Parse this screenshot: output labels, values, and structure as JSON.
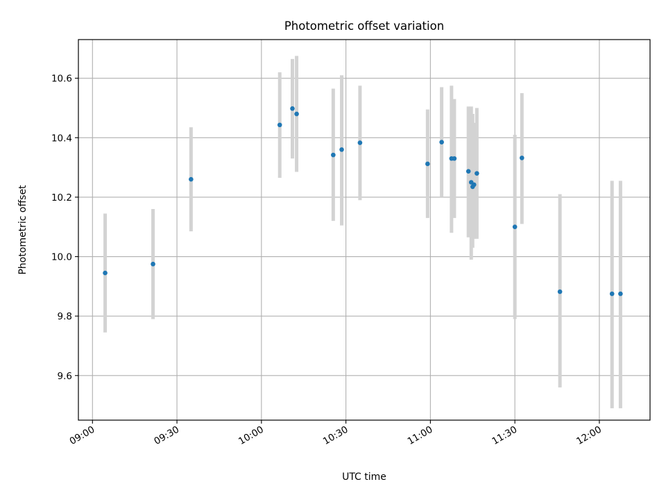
{
  "chart_data": {
    "type": "scatter",
    "title": "Photometric offset variation",
    "xlabel": "UTC time",
    "ylabel": "Photometric offset",
    "grid": true,
    "x_tick_labels": [
      "09:00",
      "09:30",
      "10:00",
      "10:30",
      "11:00",
      "11:30",
      "12:00"
    ],
    "y_tick_labels": [
      "9.6",
      "9.8",
      "10.0",
      "10.2",
      "10.4",
      "10.6"
    ],
    "xlim": [
      "08:55",
      "12:18"
    ],
    "ylim": [
      9.45,
      10.73
    ],
    "colors": {
      "point": "#1f77b4",
      "errorbar": "#d3d3d3",
      "grid": "#b0b0b0"
    },
    "points": [
      {
        "x": "09:04:30",
        "y": 9.945,
        "ylow": 9.745,
        "yhigh": 10.145
      },
      {
        "x": "09:21:30",
        "y": 9.975,
        "ylow": 9.79,
        "yhigh": 10.16
      },
      {
        "x": "09:35:00",
        "y": 10.26,
        "ylow": 10.085,
        "yhigh": 10.435
      },
      {
        "x": "10:06:30",
        "y": 10.443,
        "ylow": 10.265,
        "yhigh": 10.62
      },
      {
        "x": "10:11:00",
        "y": 10.498,
        "ylow": 10.33,
        "yhigh": 10.665
      },
      {
        "x": "10:12:30",
        "y": 10.48,
        "ylow": 10.285,
        "yhigh": 10.675
      },
      {
        "x": "10:25:30",
        "y": 10.342,
        "ylow": 10.12,
        "yhigh": 10.565
      },
      {
        "x": "10:28:30",
        "y": 10.36,
        "ylow": 10.105,
        "yhigh": 10.61
      },
      {
        "x": "10:35:00",
        "y": 10.383,
        "ylow": 10.19,
        "yhigh": 10.575
      },
      {
        "x": "10:59:00",
        "y": 10.312,
        "ylow": 10.13,
        "yhigh": 10.495
      },
      {
        "x": "11:04:00",
        "y": 10.385,
        "ylow": 10.2,
        "yhigh": 10.57
      },
      {
        "x": "11:07:30",
        "y": 10.33,
        "ylow": 10.08,
        "yhigh": 10.575
      },
      {
        "x": "11:08:30",
        "y": 10.33,
        "ylow": 10.13,
        "yhigh": 10.53
      },
      {
        "x": "11:13:30",
        "y": 10.287,
        "ylow": 10.065,
        "yhigh": 10.505
      },
      {
        "x": "11:14:30",
        "y": 10.25,
        "ylow": 9.99,
        "yhigh": 10.505
      },
      {
        "x": "11:15:00",
        "y": 10.235,
        "ylow": 10.03,
        "yhigh": 10.48
      },
      {
        "x": "11:15:30",
        "y": 10.242,
        "ylow": 10.06,
        "yhigh": 10.45
      },
      {
        "x": "11:16:30",
        "y": 10.28,
        "ylow": 10.06,
        "yhigh": 10.5
      },
      {
        "x": "11:30:00",
        "y": 10.1,
        "ylow": 9.79,
        "yhigh": 10.41
      },
      {
        "x": "11:32:30",
        "y": 10.332,
        "ylow": 10.11,
        "yhigh": 10.55
      },
      {
        "x": "11:46:00",
        "y": 9.882,
        "ylow": 9.56,
        "yhigh": 10.21
      },
      {
        "x": "12:04:30",
        "y": 9.875,
        "ylow": 9.49,
        "yhigh": 10.255
      },
      {
        "x": "12:07:30",
        "y": 9.875,
        "ylow": 9.49,
        "yhigh": 10.255
      }
    ]
  }
}
